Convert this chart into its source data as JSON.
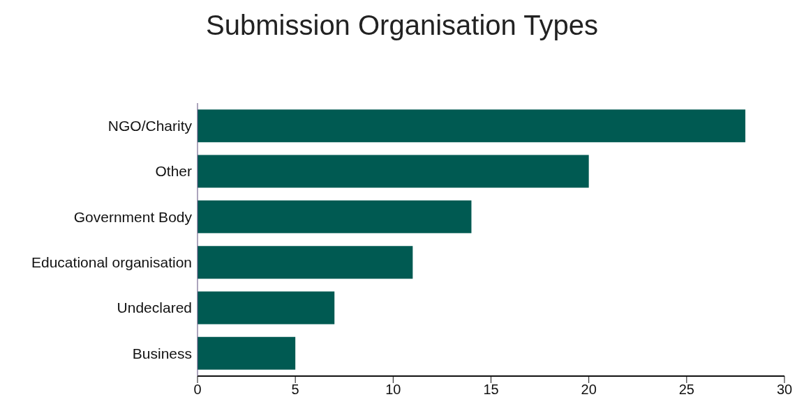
{
  "chart_data": {
    "type": "bar",
    "orientation": "horizontal",
    "title": "Submission Organisation Types",
    "categories": [
      "NGO/Charity",
      "Other",
      "Government Body",
      "Educational organisation",
      "Undeclared",
      "Business"
    ],
    "values": [
      28,
      20,
      14,
      11,
      7,
      5
    ],
    "color": "#005a52",
    "xlim": [
      0,
      30
    ],
    "xticks": [
      0,
      5,
      10,
      15,
      20,
      25,
      30
    ],
    "grid": false
  }
}
